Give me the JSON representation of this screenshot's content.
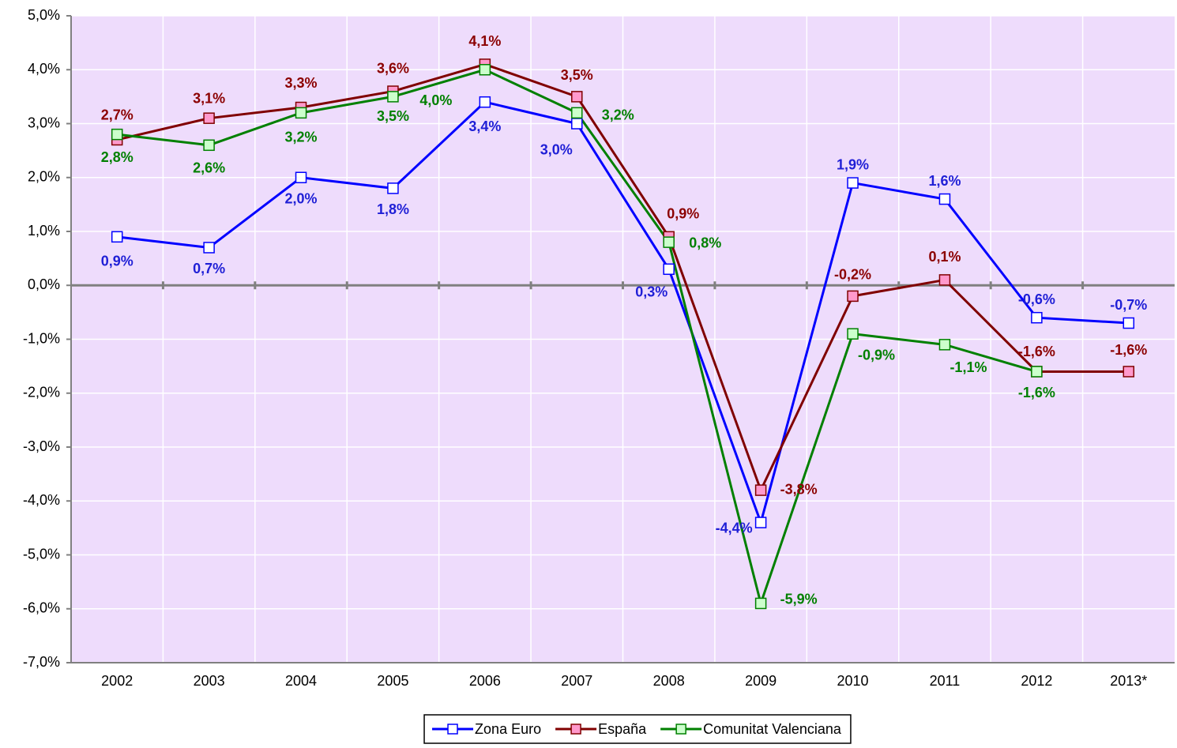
{
  "chart_data": {
    "type": "line",
    "categories": [
      "2002",
      "2003",
      "2004",
      "2005",
      "2006",
      "2007",
      "2008",
      "2009",
      "2010",
      "2011",
      "2012",
      "2013*"
    ],
    "ylim": [
      -7,
      5
    ],
    "yticks": [
      {
        "value": 5,
        "label": "5,0%"
      },
      {
        "value": 4,
        "label": "4,0%"
      },
      {
        "value": 3,
        "label": "3,0%"
      },
      {
        "value": 2,
        "label": "2,0%"
      },
      {
        "value": 1,
        "label": "1,0%"
      },
      {
        "value": 0,
        "label": "0,0%"
      },
      {
        "value": -1,
        "label": "-1,0%"
      },
      {
        "value": -2,
        "label": "-2,0%"
      },
      {
        "value": -3,
        "label": "-3,0%"
      },
      {
        "value": -4,
        "label": "-4,0%"
      },
      {
        "value": -5,
        "label": "-5,0%"
      },
      {
        "value": -6,
        "label": "-6,0%"
      },
      {
        "value": -7,
        "label": "-7,0%"
      }
    ],
    "grid": true,
    "legend": "bottom",
    "series": [
      {
        "name": "Zona Euro",
        "color": "#0000ff",
        "marker_fill": "#ffffff",
        "label_color": "#1f1fd6",
        "values": [
          0.9,
          0.7,
          2.0,
          1.8,
          3.4,
          3.0,
          0.3,
          -4.4,
          1.9,
          1.6,
          -0.6,
          -0.7
        ],
        "value_labels": [
          "0,9%",
          "0,7%",
          "2,0%",
          "1,8%",
          "3,4%",
          "3,0%",
          "0,3%",
          "-4,4%",
          "1,9%",
          "1,6%",
          "-0,6%",
          "-0,7%"
        ]
      },
      {
        "name": "España",
        "color": "#800000",
        "marker_fill": "#ff99cc",
        "label_color": "#8b0000",
        "values": [
          2.7,
          3.1,
          3.3,
          3.6,
          4.1,
          3.5,
          0.9,
          -3.8,
          -0.2,
          0.1,
          -1.6,
          -1.6
        ],
        "value_labels": [
          "2,7%",
          "3,1%",
          "3,3%",
          "3,6%",
          "4,1%",
          "3,5%",
          "0,9%",
          "-3,8%",
          "-0,2%",
          "0,1%",
          "-1,6%",
          "-1,6%"
        ]
      },
      {
        "name": "Comunitat Valenciana",
        "color": "#008000",
        "marker_fill": "#ccffcc",
        "label_color": "#008000",
        "values": [
          2.8,
          2.6,
          3.2,
          3.5,
          4.0,
          3.2,
          0.8,
          -5.9,
          -0.9,
          -1.1,
          -1.6,
          null
        ],
        "value_labels": [
          "2,8%",
          "2,6%",
          "3,2%",
          "3,5%",
          "4,0%",
          "3,2%",
          "0,8%",
          "-5,9%",
          "-0,9%",
          "-1,1%",
          "-1,6%",
          null
        ]
      }
    ]
  }
}
